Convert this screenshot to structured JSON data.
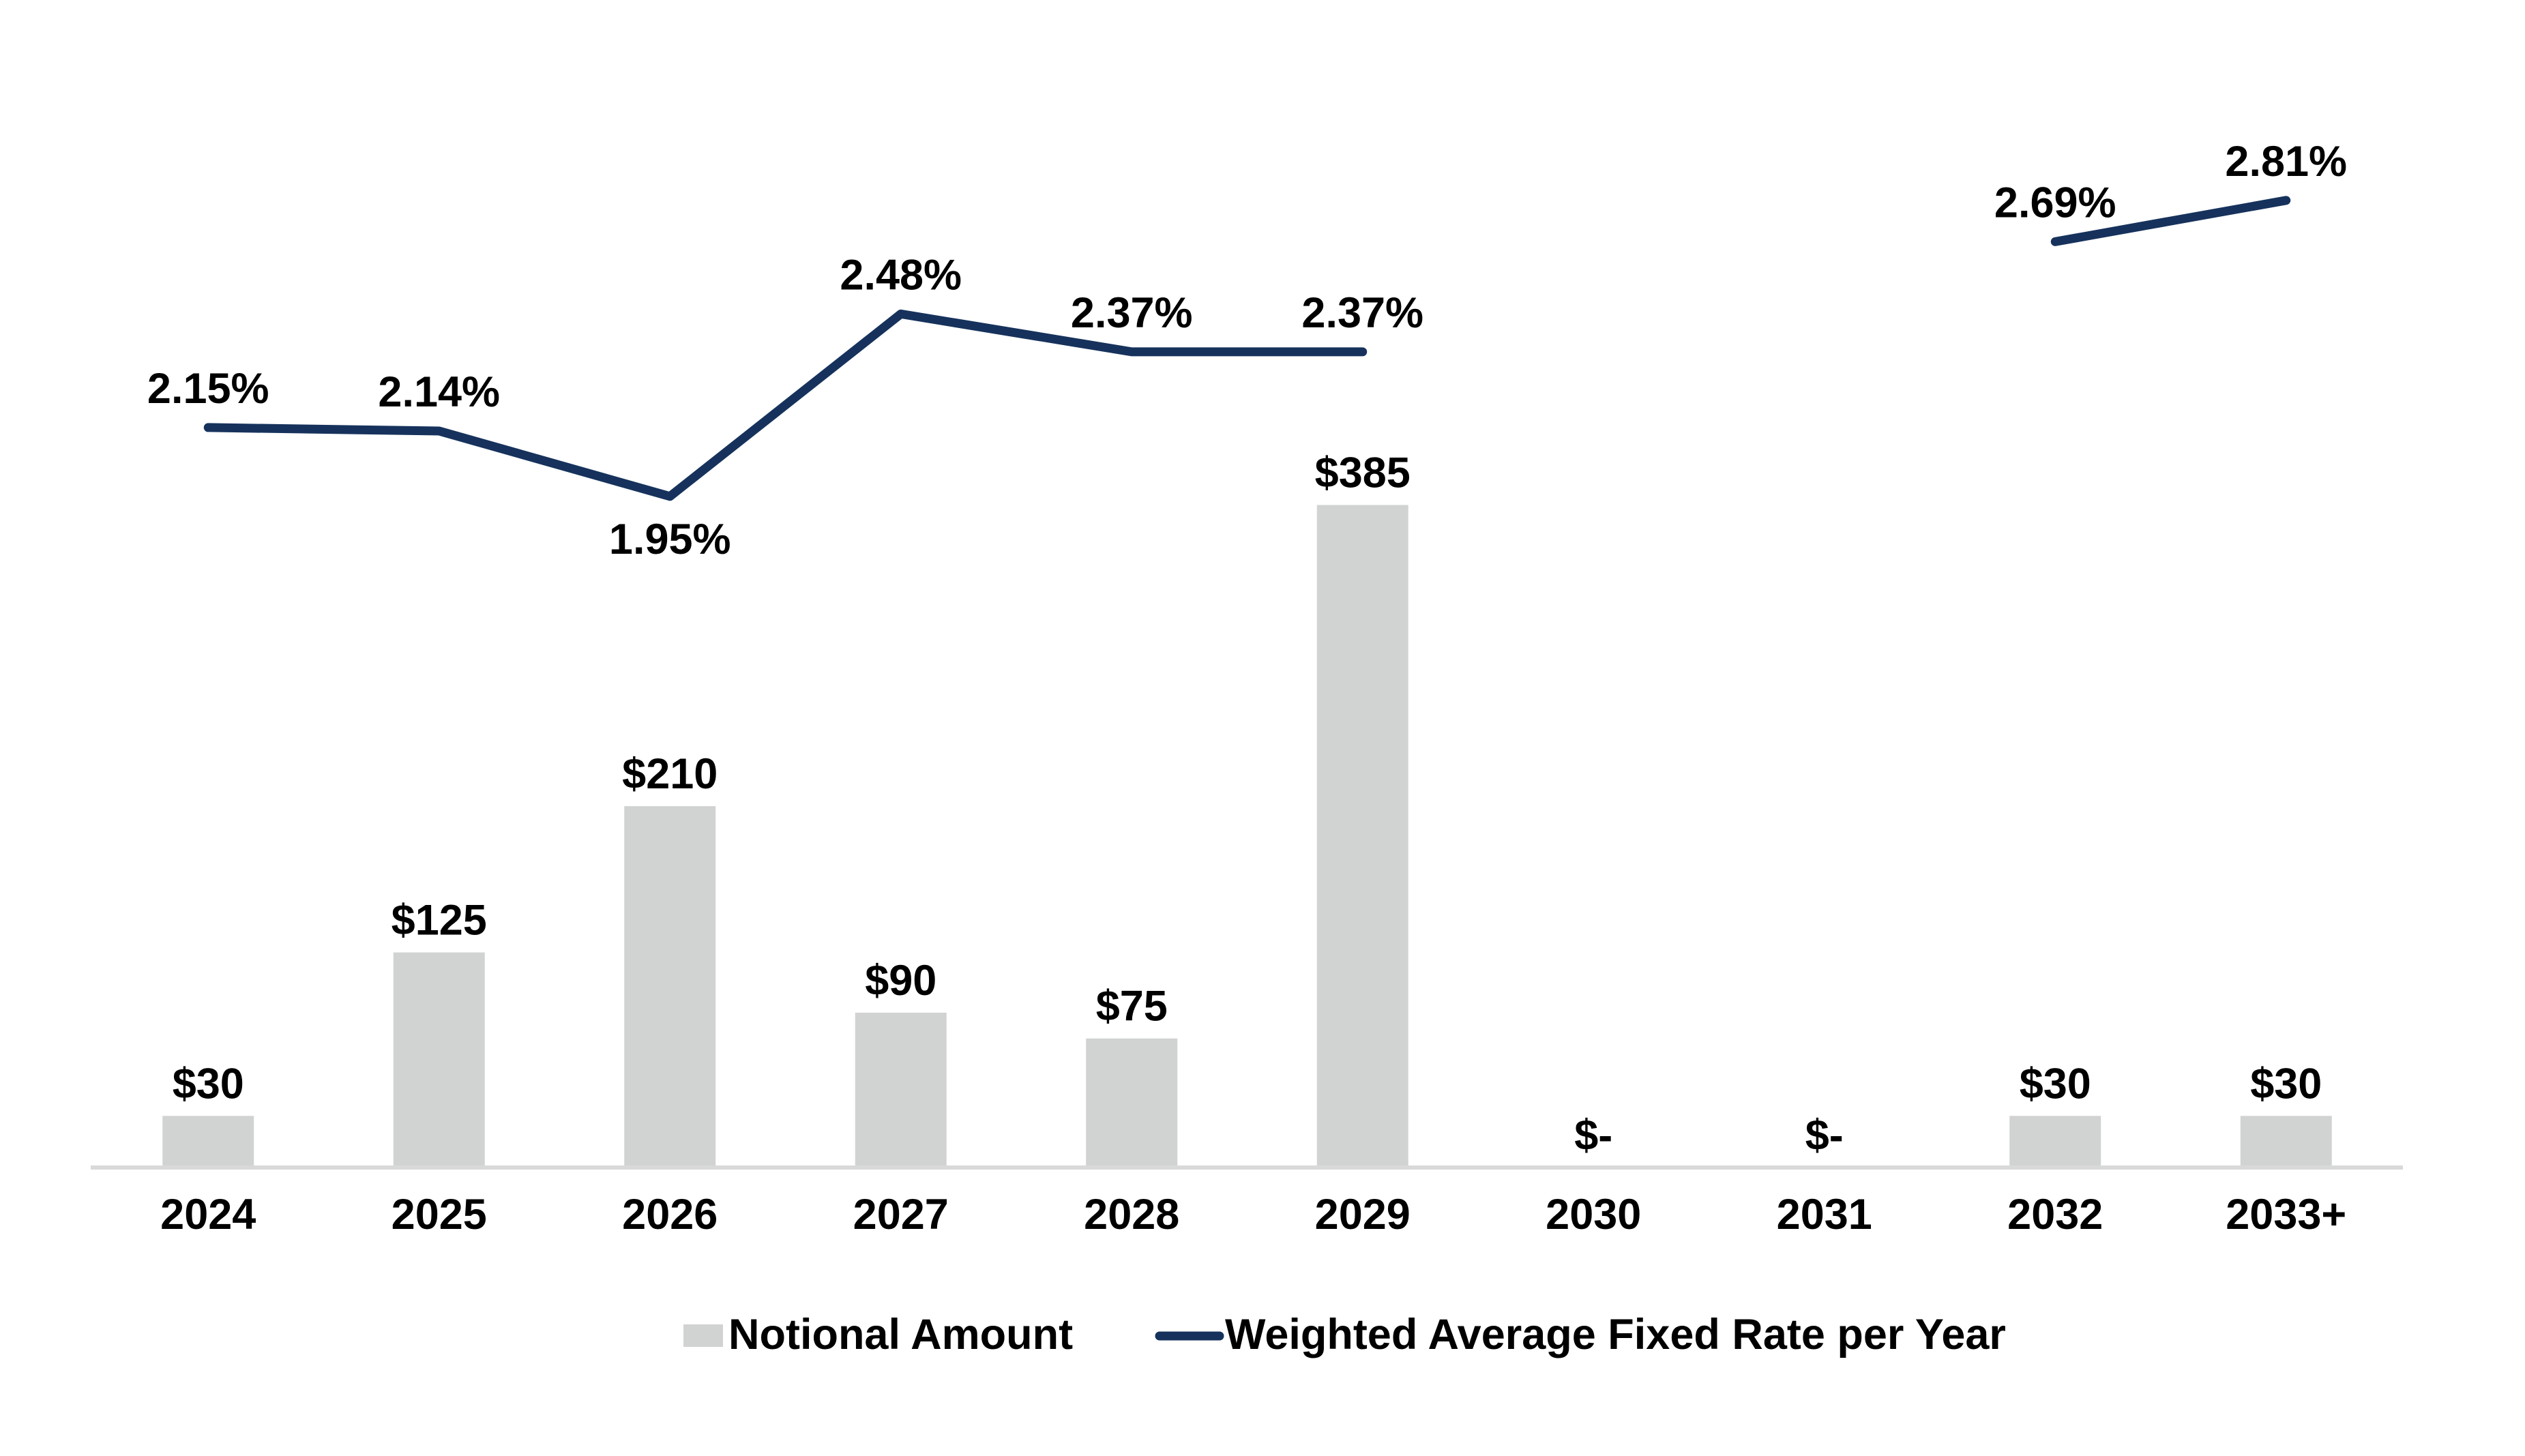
{
  "chart_data": {
    "type": "bar",
    "subtype": "combo-bar-line",
    "title": "",
    "xlabel": "",
    "ylabel": "",
    "categories": [
      "2024",
      "2025",
      "2026",
      "2027",
      "2028",
      "2029",
      "2030",
      "2031",
      "2032",
      "2033+"
    ],
    "series": [
      {
        "name": "Notional Amount",
        "type": "bar",
        "values": [
          30,
          125,
          210,
          90,
          75,
          385,
          0,
          0,
          30,
          30
        ],
        "labels": [
          "$30",
          "$125",
          "$210",
          "$90",
          "$75",
          "$385",
          "$-",
          "$-",
          "$30",
          "$30"
        ]
      },
      {
        "name": "Weighted Average Fixed Rate per Year",
        "type": "line",
        "values": [
          2.15,
          2.14,
          1.95,
          2.48,
          2.37,
          2.37,
          null,
          null,
          2.69,
          2.81
        ],
        "labels": [
          "2.15%",
          "2.14%",
          "1.95%",
          "2.48%",
          "2.37%",
          "2.37%",
          null,
          null,
          "2.69%",
          "2.81%"
        ],
        "label_position": [
          "above",
          "above",
          "below",
          "above",
          "above",
          "above",
          null,
          null,
          "above",
          "above"
        ]
      }
    ],
    "bar_axis": {
      "min": 0,
      "max": 640,
      "visible": false
    },
    "line_axis": {
      "min": 0,
      "max": 3.2,
      "unit": "%",
      "visible": false
    },
    "grid": false,
    "legend_position": "bottom",
    "colors": {
      "bar": "#D1D3D2",
      "line": "#16325C",
      "axis": "#D9D9D9",
      "text": "#000000",
      "background": "#FFFFFF"
    }
  }
}
